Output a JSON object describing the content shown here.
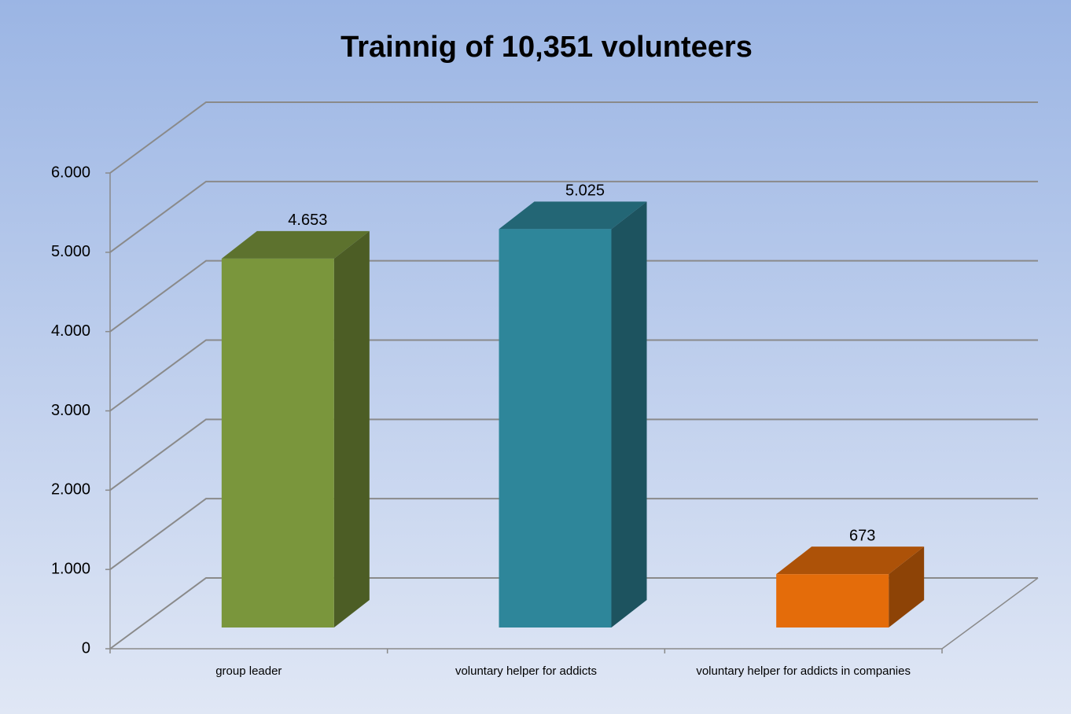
{
  "chart_data": {
    "type": "bar3d",
    "title": "Trainnig of 10,351 volunteers",
    "categories": [
      "group leader",
      "voluntary helper for addicts",
      "voluntary helper for addicts in companies"
    ],
    "values": [
      4653,
      5025,
      673
    ],
    "value_labels": [
      "4.653",
      "5.025",
      "673"
    ],
    "colors": [
      "#7a963c",
      "#2e869a",
      "#e46c0a"
    ],
    "ylim": [
      0,
      6000
    ],
    "yticks": [
      0,
      {
        "value": 1000,
        "label": "1.000"
      },
      {
        "value": 2000,
        "label": "2.000"
      },
      {
        "value": 3000,
        "label": "3.000"
      },
      {
        "value": 4000,
        "label": "4.000"
      },
      {
        "value": 5000,
        "label": "5.000"
      },
      {
        "value": 6000,
        "label": "6.000"
      }
    ],
    "grid": true
  }
}
